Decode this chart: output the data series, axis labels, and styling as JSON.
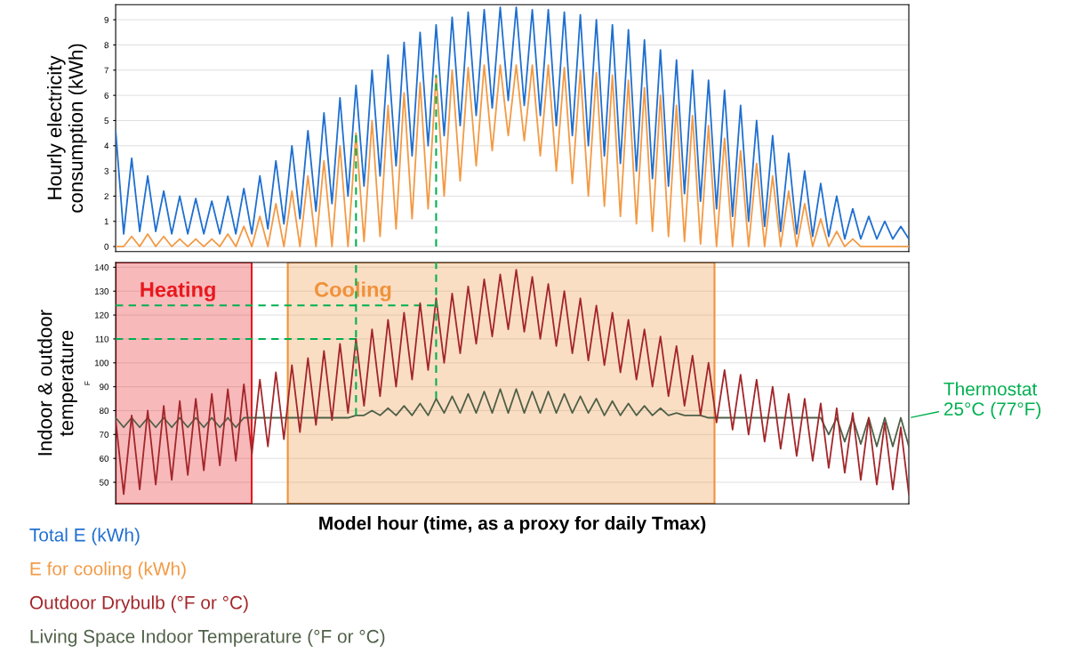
{
  "chart_data": [
    {
      "type": "line",
      "ylabel": "Hourly electricity\nconsumption (kWh)",
      "ylim": [
        -0.2,
        9.6
      ],
      "yticks": [
        0,
        1,
        2,
        3,
        4,
        5,
        6,
        7,
        8,
        9
      ],
      "grid": "y",
      "tick_labels": "y",
      "categories": [
        null,
        null,
        null,
        null,
        null,
        null,
        null,
        null,
        null,
        null,
        null,
        null,
        null,
        null,
        null,
        null,
        null,
        null,
        null,
        null,
        null,
        null,
        null,
        null,
        null,
        null,
        null,
        null,
        null,
        null,
        null,
        null,
        null,
        null,
        null,
        null,
        null,
        null,
        null,
        null,
        null,
        null,
        null,
        null,
        null,
        null,
        null,
        null,
        null,
        null,
        null,
        null,
        null,
        null,
        null,
        null,
        null,
        null,
        null,
        null,
        null,
        null,
        null,
        null,
        null,
        null,
        null,
        null,
        null,
        null,
        null,
        null,
        null,
        null,
        null,
        null,
        null,
        null,
        null,
        null,
        null,
        null,
        null,
        null,
        null,
        null,
        null,
        null,
        null,
        null,
        null,
        null,
        null,
        null,
        null,
        null,
        null,
        null,
        null,
        null
      ],
      "series": [
        {
          "name": "Total E (kWh)",
          "color": "#1f6fd0",
          "values": [
            4.6,
            0.5,
            3.5,
            0.6,
            2.8,
            0.6,
            2.2,
            0.5,
            2.0,
            0.5,
            1.9,
            0.5,
            1.8,
            0.5,
            2.0,
            0.5,
            2.3,
            0.5,
            2.8,
            0.7,
            3.4,
            0.9,
            4.0,
            1.1,
            4.6,
            1.4,
            5.3,
            1.7,
            5.9,
            2.0,
            6.4,
            2.4,
            7.0,
            2.8,
            7.6,
            3.2,
            8.1,
            3.6,
            8.5,
            4.0,
            8.8,
            4.4,
            9.1,
            4.8,
            9.3,
            5.2,
            9.4,
            5.5,
            9.5,
            5.8,
            9.5,
            5.6,
            9.4,
            5.2,
            9.4,
            4.8,
            9.3,
            4.4,
            9.2,
            4.0,
            9.0,
            3.6,
            8.8,
            3.3,
            8.6,
            3.0,
            8.2,
            2.7,
            7.8,
            2.4,
            7.4,
            2.1,
            7.0,
            1.8,
            6.6,
            1.5,
            6.2,
            1.2,
            5.6,
            1.0,
            5.0,
            0.8,
            4.4,
            0.6,
            3.7,
            0.5,
            3.0,
            0.4,
            2.5,
            0.4,
            2.0,
            0.3,
            1.5,
            0.3,
            1.2,
            0.3,
            1.0,
            0.3,
            0.8,
            0.3
          ]
        },
        {
          "name": "E for cooling (kWh)",
          "color": "#f39a45",
          "values": [
            0,
            0,
            0.4,
            0,
            0.5,
            0,
            0.4,
            0,
            0.3,
            0,
            0.3,
            0,
            0.3,
            0,
            0.5,
            0,
            0.8,
            0,
            1.2,
            0,
            1.7,
            0,
            2.2,
            0,
            2.8,
            0,
            3.4,
            0,
            4.0,
            0,
            4.5,
            0.2,
            5.0,
            0.4,
            5.6,
            0.7,
            6.1,
            1.1,
            6.5,
            1.5,
            6.8,
            2.0,
            7.0,
            2.6,
            7.1,
            3.2,
            7.2,
            3.8,
            7.2,
            4.4,
            7.2,
            4.2,
            7.2,
            3.6,
            7.2,
            3.0,
            7.1,
            2.5,
            7.0,
            2.0,
            6.9,
            1.6,
            6.8,
            1.2,
            6.6,
            0.9,
            6.3,
            0.6,
            6.0,
            0.4,
            5.6,
            0.2,
            5.2,
            0.1,
            4.8,
            0,
            4.3,
            0,
            3.8,
            0,
            3.3,
            0,
            2.8,
            0,
            2.2,
            0,
            1.7,
            0,
            1.1,
            0,
            0.6,
            0,
            0.3,
            0,
            0,
            0,
            0,
            0,
            0,
            0
          ]
        }
      ]
    },
    {
      "type": "line",
      "ylabel": "Indoor & outdoor\ntemperature",
      "xlabel": "Model hour (time, as a proxy for daily Tmax)",
      "ylim": [
        41,
        142
      ],
      "yticks": [
        50,
        60,
        70,
        80,
        90,
        100,
        110,
        120,
        130,
        140
      ],
      "grid": "y",
      "tick_labels": "y",
      "annotations": [
        "F",
        "Thermostat\n25°C (77°F)",
        "Heating",
        "Cooling"
      ],
      "categories": [
        null,
        null,
        null,
        null,
        null,
        null,
        null,
        null,
        null,
        null,
        null,
        null,
        null,
        null,
        null,
        null,
        null,
        null,
        null,
        null,
        null,
        null,
        null,
        null,
        null,
        null,
        null,
        null,
        null,
        null,
        null,
        null,
        null,
        null,
        null,
        null,
        null,
        null,
        null,
        null,
        null,
        null,
        null,
        null,
        null,
        null,
        null,
        null,
        null,
        null,
        null,
        null,
        null,
        null,
        null,
        null,
        null,
        null,
        null,
        null,
        null,
        null,
        null,
        null,
        null,
        null,
        null,
        null,
        null,
        null,
        null,
        null,
        null,
        null,
        null,
        null,
        null,
        null,
        null,
        null,
        null,
        null,
        null,
        null,
        null,
        null,
        null,
        null,
        null,
        null,
        null,
        null,
        null,
        null,
        null,
        null,
        null,
        null,
        null,
        null
      ],
      "series": [
        {
          "name": "Outdoor Drybulb (°F or °C)",
          "color": "#a3262a",
          "values": [
            76,
            45,
            78,
            47,
            80,
            49,
            82,
            51,
            84,
            53,
            85,
            55,
            87,
            57,
            89,
            59,
            91,
            62,
            93,
            65,
            96,
            68,
            99,
            71,
            102,
            74,
            105,
            76,
            108,
            79,
            110,
            82,
            114,
            86,
            118,
            90,
            121,
            93,
            125,
            97,
            127,
            100,
            129,
            104,
            132,
            108,
            135,
            111,
            137,
            114,
            139,
            113,
            136,
            110,
            133,
            107,
            130,
            104,
            127,
            101,
            124,
            99,
            121,
            96,
            118,
            93,
            114,
            90,
            111,
            86,
            107,
            82,
            103,
            78,
            100,
            75,
            97,
            72,
            95,
            70,
            93,
            67,
            90,
            64,
            87,
            61,
            85,
            59,
            83,
            56,
            81,
            54,
            79,
            51,
            77,
            49,
            75,
            47,
            73,
            45
          ]
        },
        {
          "name": "Living Space Indoor Temperature (°F or °C)",
          "color": "#4f6048",
          "values": [
            77,
            73,
            77,
            73,
            77,
            73,
            77,
            73,
            77,
            73,
            77,
            73,
            77,
            73,
            77,
            73,
            77,
            77,
            77,
            77,
            77,
            77,
            77,
            77,
            77,
            77,
            77,
            77,
            77,
            77,
            78,
            78,
            80,
            78,
            81,
            78,
            82,
            78,
            83,
            78,
            85,
            79,
            86,
            79,
            87,
            79,
            88,
            79,
            89,
            79,
            89,
            79,
            88,
            79,
            88,
            79,
            87,
            79,
            86,
            79,
            85,
            78,
            84,
            78,
            83,
            78,
            82,
            78,
            81,
            78,
            79,
            78,
            78,
            78,
            77,
            77,
            77,
            77,
            77,
            77,
            77,
            77,
            77,
            77,
            77,
            77,
            77,
            77,
            77,
            70,
            77,
            67,
            77,
            66,
            77,
            65,
            77,
            65,
            77,
            65
          ]
        },
        {
          "color": "#00b050",
          "line_style": "dashed",
          "values": [
            110,
            110,
            110,
            110,
            110,
            110,
            110,
            110,
            110,
            110,
            110,
            110,
            110,
            110,
            110,
            110,
            110,
            110,
            110,
            110,
            110,
            110,
            110,
            110,
            110,
            110,
            110,
            110,
            110,
            110,
            110,
            null,
            null,
            null,
            null,
            null,
            null,
            null,
            null,
            null,
            null,
            null,
            null,
            null,
            null,
            null,
            null,
            null,
            null,
            null,
            null,
            null,
            null,
            null,
            null,
            null,
            null,
            null,
            null,
            null,
            null,
            null,
            null,
            null,
            null,
            null,
            null,
            null,
            null,
            null,
            null,
            null,
            null,
            null,
            null,
            null,
            null,
            null,
            null,
            null,
            null,
            null,
            null,
            null,
            null,
            null,
            null,
            null,
            null,
            null,
            null,
            null,
            null,
            null,
            null,
            null,
            null,
            null,
            null,
            null
          ]
        },
        {
          "color": "#00b050",
          "line_style": "dashed",
          "values": [
            124,
            124,
            124,
            124,
            124,
            124,
            124,
            124,
            124,
            124,
            124,
            124,
            124,
            124,
            124,
            124,
            124,
            124,
            124,
            124,
            124,
            124,
            124,
            124,
            124,
            124,
            124,
            124,
            124,
            124,
            124,
            124,
            124,
            124,
            124,
            124,
            124,
            124,
            124,
            124,
            124,
            null,
            null,
            null,
            null,
            null,
            null,
            null,
            null,
            null,
            null,
            null,
            null,
            null,
            null,
            null,
            null,
            null,
            null,
            null,
            null,
            null,
            null,
            null,
            null,
            null,
            null,
            null,
            null,
            null,
            null,
            null,
            null,
            null,
            null,
            null,
            null,
            null,
            null,
            null,
            null,
            null,
            null,
            null,
            null,
            null,
            null,
            null,
            null,
            null,
            null,
            null,
            null,
            null,
            null,
            null,
            null,
            null,
            null,
            null
          ]
        }
      ]
    }
  ]
}
